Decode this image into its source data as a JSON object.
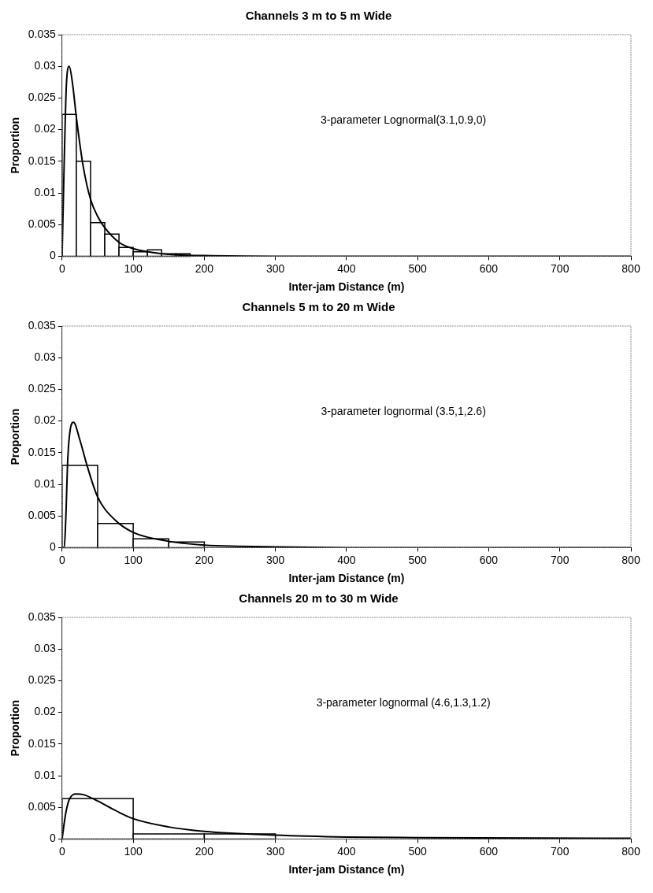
{
  "chart_data": [
    {
      "type": "histogram",
      "title": "Channels 3 m to 5 m Wide",
      "xlabel": "Inter-jam Distance (m)",
      "ylabel": "Proportion",
      "annotations": [
        "3-parameter Lognormal(3.1,0.9,0)"
      ],
      "xlim": [
        0,
        800
      ],
      "xticks": [
        0,
        100,
        200,
        300,
        400,
        500,
        600,
        700,
        800
      ],
      "ylim": [
        0,
        0.035
      ],
      "yticks": [
        0,
        0.005,
        0.01,
        0.015,
        0.02,
        0.025,
        0.03,
        0.035
      ],
      "grid": false,
      "legend": false,
      "series": [
        {
          "color": "#000000",
          "bins": [
            0,
            20,
            40,
            60,
            80,
            100,
            120,
            140,
            160,
            180
          ],
          "values": [
            0.0224,
            0.015,
            0.0053,
            0.0035,
            0.0014,
            0.0007,
            0.001,
            0.0004,
            0.0004
          ]
        },
        {
          "type": "line",
          "color": "#000000",
          "x": [
            0,
            3,
            6,
            10,
            15,
            20,
            30,
            40,
            50,
            60,
            80,
            100,
            150,
            200,
            300,
            800
          ],
          "values": [
            0,
            0.015,
            0.027,
            0.03,
            0.027,
            0.022,
            0.014,
            0.009,
            0.0063,
            0.0045,
            0.0022,
            0.0012,
            0.0003,
            0.0001,
            0,
            0
          ]
        }
      ]
    },
    {
      "type": "histogram",
      "title": "Channels 5 m to 20 m Wide",
      "xlabel": "Inter-jam Distance (m)",
      "ylabel": "Proportion",
      "annotations": [
        "3-parameter lognormal (3.5,1,2.6)"
      ],
      "xlim": [
        0,
        800
      ],
      "xticks": [
        0,
        100,
        200,
        300,
        400,
        500,
        600,
        700,
        800
      ],
      "ylim": [
        0,
        0.035
      ],
      "yticks": [
        0,
        0.005,
        0.01,
        0.015,
        0.02,
        0.025,
        0.03,
        0.035
      ],
      "grid": false,
      "legend": false,
      "series": [
        {
          "color": "#000000",
          "bins": [
            0,
            50,
            100,
            150,
            200
          ],
          "values": [
            0.013,
            0.0038,
            0.0014,
            0.0009
          ]
        },
        {
          "type": "line",
          "color": "#000000",
          "x": [
            0,
            3,
            5,
            8,
            12,
            16,
            25,
            35,
            50,
            75,
            100,
            150,
            200,
            250,
            300,
            400,
            800
          ],
          "values": [
            0,
            0,
            0.004,
            0.014,
            0.019,
            0.0198,
            0.017,
            0.013,
            0.008,
            0.0043,
            0.0024,
            0.001,
            0.0004,
            0.0002,
            0.0001,
            0,
            0
          ]
        }
      ]
    },
    {
      "type": "histogram",
      "title": "Channels 20 m to 30 m Wide",
      "xlabel": "Inter-jam Distance (m)",
      "ylabel": "Proportion",
      "annotations": [
        "3-parameter lognormal (4.6,1.3,1.2)"
      ],
      "xlim": [
        0,
        800
      ],
      "xticks": [
        0,
        100,
        200,
        300,
        400,
        500,
        600,
        700,
        800
      ],
      "ylim": [
        0,
        0.035
      ],
      "yticks": [
        0,
        0.005,
        0.01,
        0.015,
        0.02,
        0.025,
        0.03,
        0.035
      ],
      "grid": false,
      "legend": false,
      "series": [
        {
          "color": "#000000",
          "bins": [
            0,
            100,
            200,
            300
          ],
          "values": [
            0.0064,
            0.0008,
            0.0008
          ]
        },
        {
          "type": "line",
          "color": "#000000",
          "x": [
            0,
            5,
            10,
            20,
            30,
            50,
            75,
            100,
            150,
            200,
            300,
            400,
            500,
            800
          ],
          "values": [
            0,
            0.004,
            0.0062,
            0.0071,
            0.007,
            0.006,
            0.0045,
            0.0032,
            0.0019,
            0.0012,
            0.0006,
            0.0003,
            0.0002,
            0.0001
          ]
        }
      ]
    }
  ]
}
